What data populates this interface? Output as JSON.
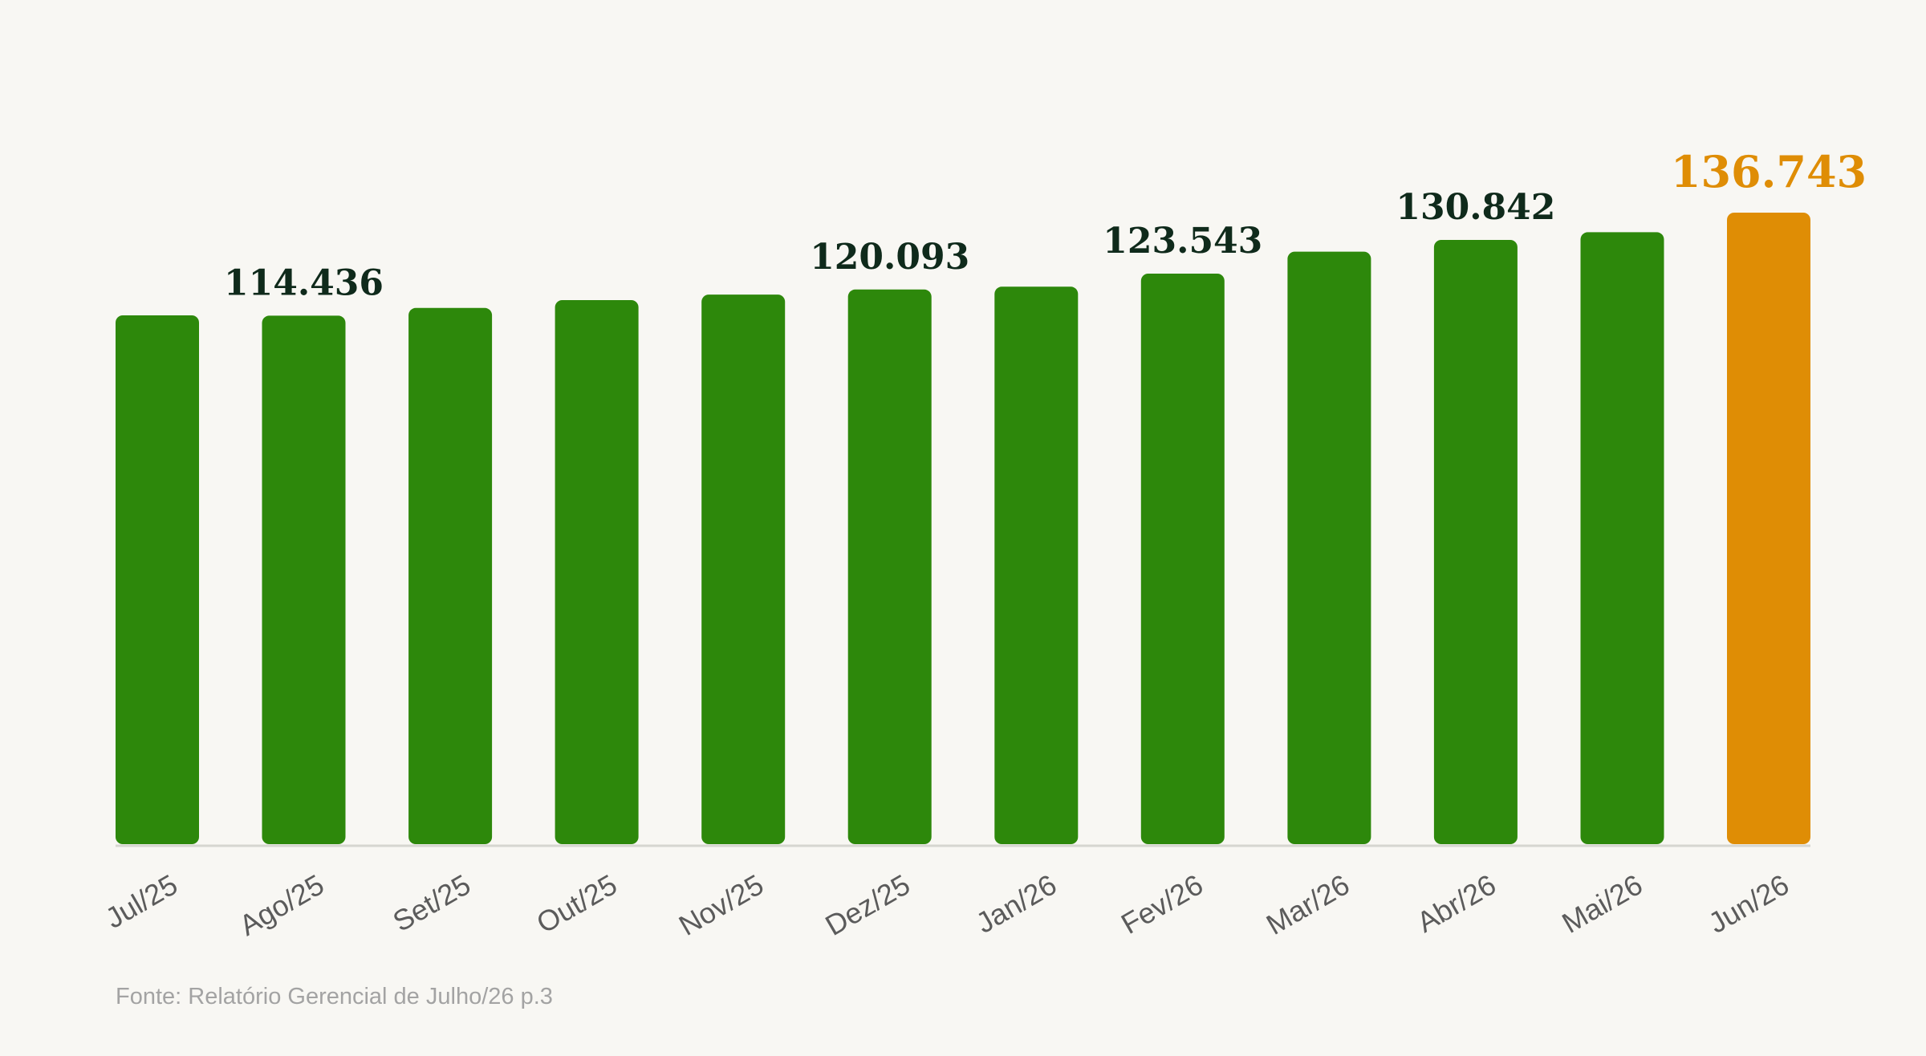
{
  "chart_data": {
    "type": "bar",
    "title": "",
    "xlabel": "",
    "ylabel": "",
    "categories": [
      "Jul/25",
      "Ago/25",
      "Set/25",
      "Out/25",
      "Nov/25",
      "Dez/25",
      "Jan/26",
      "Fev/26",
      "Mar/26",
      "Abr/26",
      "Mai/26",
      "Jun/26"
    ],
    "values": [
      114500,
      114436,
      116100,
      117800,
      119000,
      120093,
      120700,
      123543,
      128300,
      130842,
      132500,
      136743
    ],
    "value_labels": [
      "",
      "114.436",
      "",
      "",
      "",
      "120.093",
      "",
      "123.543",
      "",
      "130.842",
      "",
      "136.743"
    ],
    "highlight_index": 11,
    "ylim": [
      0,
      136743
    ],
    "grid": false,
    "legend": "none",
    "source_note": "Fonte: Relatório Gerencial de Julho/26 p.3"
  },
  "colors": {
    "background": "#f8f7f3",
    "bar": "#2d880b",
    "highlight_bar": "#df8d05",
    "label": "#0f2a1b",
    "highlight_label": "#df8d05",
    "baseline": "#d6d6d0",
    "tick": "#5b5b5b",
    "source": "#a3a3a3"
  }
}
